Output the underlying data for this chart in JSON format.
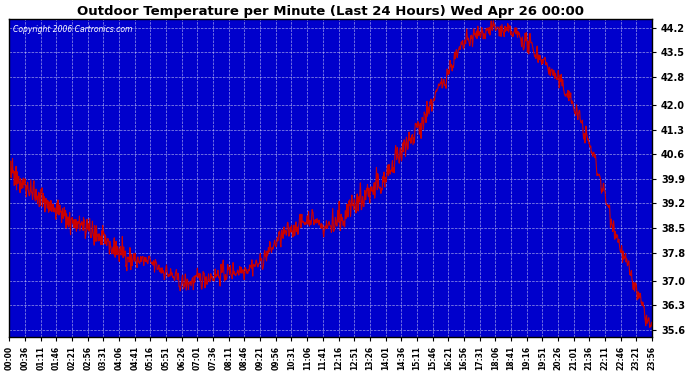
{
  "title": "Outdoor Temperature per Minute (Last 24 Hours) Wed Apr 26 00:00",
  "copyright": "Copyright 2006 Cartronics.com",
  "plot_bg_color": "#0000cc",
  "line_color": "#cc0000",
  "grid_color": "#0000dd",
  "yticks": [
    35.6,
    36.3,
    37.0,
    37.8,
    38.5,
    39.2,
    39.9,
    40.6,
    41.3,
    42.0,
    42.8,
    43.5,
    44.2
  ],
  "ylim": [
    35.4,
    44.45
  ],
  "xtick_labels": [
    "00:00",
    "00:36",
    "01:11",
    "01:46",
    "02:21",
    "02:56",
    "03:31",
    "04:06",
    "04:41",
    "05:16",
    "05:51",
    "06:26",
    "07:01",
    "07:36",
    "08:11",
    "08:46",
    "09:21",
    "09:56",
    "10:31",
    "11:06",
    "11:41",
    "12:16",
    "12:51",
    "13:26",
    "14:01",
    "14:36",
    "15:11",
    "15:46",
    "16:21",
    "16:56",
    "17:31",
    "18:06",
    "18:41",
    "19:16",
    "19:51",
    "20:26",
    "21:01",
    "21:36",
    "22:11",
    "22:46",
    "23:21",
    "23:56"
  ],
  "num_minutes": 1440,
  "seed": 42,
  "keypoints_t": [
    0.0,
    0.015,
    0.03,
    0.06,
    0.09,
    0.12,
    0.15,
    0.175,
    0.2,
    0.22,
    0.24,
    0.27,
    0.29,
    0.31,
    0.33,
    0.36,
    0.39,
    0.42,
    0.45,
    0.47,
    0.49,
    0.51,
    0.53,
    0.56,
    0.59,
    0.62,
    0.65,
    0.67,
    0.69,
    0.71,
    0.73,
    0.75,
    0.77,
    0.79,
    0.81,
    0.83,
    0.85,
    0.87,
    0.89,
    0.91,
    0.93,
    0.95,
    0.97,
    0.99,
    1.0
  ],
  "keypoints_v": [
    40.2,
    39.9,
    39.6,
    39.2,
    38.8,
    38.5,
    38.1,
    37.8,
    37.6,
    37.5,
    37.3,
    36.9,
    37.0,
    37.1,
    37.2,
    37.3,
    37.5,
    38.2,
    38.6,
    38.8,
    38.5,
    38.7,
    39.0,
    39.5,
    40.0,
    40.8,
    41.8,
    42.5,
    43.2,
    43.8,
    44.0,
    44.2,
    44.1,
    44.0,
    43.7,
    43.3,
    42.8,
    42.3,
    41.5,
    40.5,
    39.2,
    38.0,
    37.0,
    36.0,
    35.6
  ],
  "noise_scale": 0.18,
  "noise_smooth": 2
}
